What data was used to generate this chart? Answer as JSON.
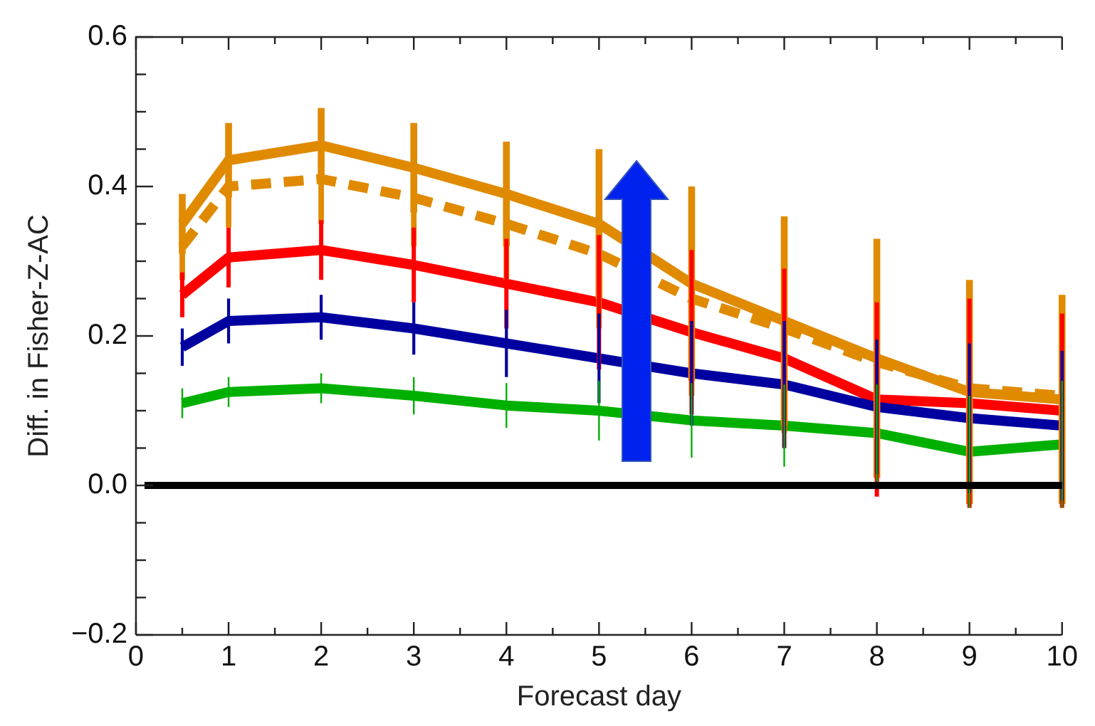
{
  "chart_data": {
    "type": "line",
    "xlabel": "Forecast day",
    "ylabel": "Diff. in Fisher-Z-AC",
    "x": [
      0.5,
      1,
      2,
      3,
      4,
      5,
      6,
      7,
      8,
      9,
      10
    ],
    "series": [
      {
        "color": "#e08a00",
        "values": [
          0.35,
          0.435,
          0.455,
          0.425,
          0.39,
          0.35,
          0.27,
          0.22,
          0.17,
          0.125,
          0.115
        ],
        "errors": [
          0.04,
          0.05,
          0.05,
          0.06,
          0.07,
          0.1,
          0.13,
          0.14,
          0.16,
          0.15,
          0.14
        ]
      },
      {
        "color": "#e08a00",
        "line_style": "dashed",
        "values": [
          0.32,
          0.4,
          0.41,
          0.385,
          0.35,
          0.31,
          0.25,
          0.21,
          0.165,
          0.13,
          0.12
        ],
        "errors": [
          0.045,
          0.055,
          0.06,
          0.065,
          0.075,
          0.1,
          0.13,
          0.14,
          0.15,
          0.14,
          0.13
        ]
      },
      {
        "color": "#ff0000",
        "values": [
          0.255,
          0.305,
          0.315,
          0.295,
          0.27,
          0.245,
          0.205,
          0.17,
          0.115,
          0.11,
          0.1
        ],
        "errors": [
          0.03,
          0.04,
          0.04,
          0.05,
          0.06,
          0.09,
          0.11,
          0.12,
          0.13,
          0.14,
          0.13
        ]
      },
      {
        "color": "#0000a0",
        "values": [
          0.185,
          0.22,
          0.225,
          0.21,
          0.19,
          0.17,
          0.15,
          0.135,
          0.105,
          0.09,
          0.08
        ],
        "errors": [
          0.025,
          0.03,
          0.03,
          0.035,
          0.045,
          0.06,
          0.07,
          0.085,
          0.09,
          0.1,
          0.1
        ]
      },
      {
        "color": "#00b000",
        "values": [
          0.11,
          0.125,
          0.13,
          0.12,
          0.107,
          0.1,
          0.087,
          0.08,
          0.07,
          0.045,
          0.055
        ],
        "errors": [
          0.02,
          0.02,
          0.02,
          0.025,
          0.03,
          0.04,
          0.05,
          0.055,
          0.065,
          0.075,
          0.085
        ]
      }
    ],
    "line_style": "solid",
    "marker": "none",
    "grid": false,
    "legend": false,
    "xlim": [
      0,
      10
    ],
    "xticks": [
      0,
      {
        "value": 0.5,
        "label": null
      },
      1,
      {
        "value": 1.5,
        "label": null
      },
      2,
      {
        "value": 2.5,
        "label": null
      },
      3,
      {
        "value": 3.5,
        "label": null
      },
      4,
      {
        "value": 4.5,
        "label": null
      },
      5,
      {
        "value": 5.5,
        "label": null
      },
      6,
      {
        "value": 6.5,
        "label": null
      },
      7,
      {
        "value": 7.5,
        "label": null
      },
      8,
      {
        "value": 8.5,
        "label": null
      },
      9,
      {
        "value": 9.5,
        "label": null
      },
      10
    ],
    "ylim": [
      -0.2,
      0.6
    ],
    "yticks": [
      {
        "value": -0.2,
        "label": "−0.2"
      },
      {
        "value": -0.15,
        "label": null
      },
      {
        "value": -0.1,
        "label": null
      },
      {
        "value": -0.05,
        "label": null
      },
      {
        "value": 0,
        "label": "0.0"
      },
      {
        "value": 0.05,
        "label": null
      },
      {
        "value": 0.1,
        "label": null
      },
      {
        "value": 0.15,
        "label": null
      },
      0.2,
      {
        "value": 0.25,
        "label": null
      },
      {
        "value": 0.3,
        "label": null
      },
      {
        "value": 0.35,
        "label": null
      },
      0.4,
      {
        "value": 0.45,
        "label": null
      },
      {
        "value": 0.5,
        "label": null
      },
      {
        "value": 0.55,
        "label": null
      },
      0.6
    ],
    "ref_lines": [
      {
        "axis": "y",
        "value": 0,
        "color": "#000000"
      }
    ]
  }
}
